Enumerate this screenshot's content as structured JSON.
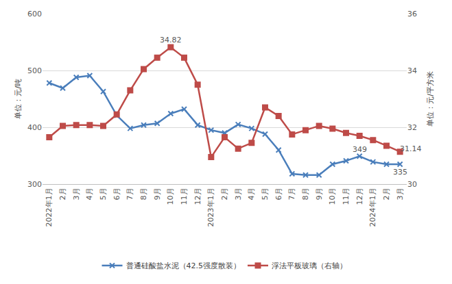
{
  "chart_data": {
    "type": "line",
    "categories": [
      "2022年1月",
      "2月",
      "3月",
      "4月",
      "5月",
      "6月",
      "7月",
      "8月",
      "9月",
      "10月",
      "11月",
      "12月",
      "2023年1月",
      "2月",
      "3月",
      "4月",
      "5月",
      "6月",
      "7月",
      "8月",
      "9月",
      "10月",
      "11月",
      "12月",
      "2024年1月",
      "2月",
      "3月"
    ],
    "y_label": "单位：元/吨",
    "y2_label": "单位：元/平方米",
    "ylim": [
      300,
      600
    ],
    "yticks": [
      300,
      400,
      500,
      600
    ],
    "y2lim": [
      30,
      36
    ],
    "y2ticks": [
      30,
      32,
      34,
      36
    ],
    "grid": true,
    "legend": "bottom",
    "series": [
      {
        "name": "普通硅酸盐水泥（42.5强度散装）",
        "color": "#4a7ebb",
        "marker": "x",
        "axis": "y",
        "values": [
          478,
          469,
          488,
          491,
          463,
          421,
          398,
          404,
          407,
          424,
          432,
          404,
          395,
          390,
          405,
          398,
          388,
          360,
          318,
          316,
          316,
          335,
          341,
          349,
          339,
          335,
          335
        ]
      },
      {
        "name": "浮法平板玻璃（右轴）",
        "color": "#be4b48",
        "marker": "square",
        "axis": "y2",
        "values": [
          31.65,
          32.05,
          32.08,
          32.08,
          32.05,
          32.45,
          33.3,
          34.05,
          34.45,
          34.82,
          34.45,
          33.5,
          30.95,
          31.65,
          31.25,
          31.45,
          32.7,
          32.4,
          31.75,
          31.9,
          32.05,
          31.95,
          31.8,
          31.7,
          31.55,
          31.35,
          31.14
        ]
      }
    ],
    "annotations": [
      {
        "text": "34.82",
        "category_index": 9,
        "axis": "y2",
        "value": 34.82
      },
      {
        "text": "349",
        "category_index": 23,
        "axis": "y",
        "value": 349
      },
      {
        "text": "335",
        "category_index": 26,
        "axis": "y",
        "value": 335
      },
      {
        "text": "31.14",
        "category_index": 26,
        "axis": "y2",
        "value": 31.14
      }
    ]
  }
}
